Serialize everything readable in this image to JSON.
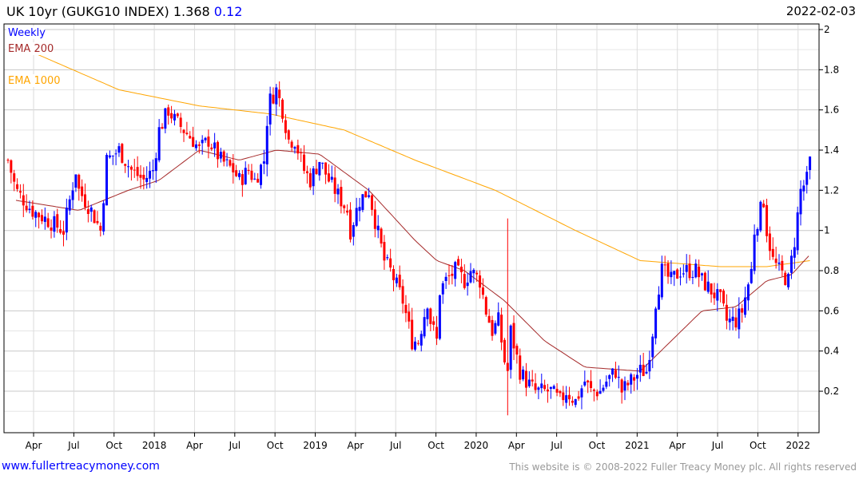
{
  "header": {
    "title": "UK 10yr (GUKG10 INDEX) 1.368",
    "change": "0.12",
    "date": "2022-02-03"
  },
  "footer": {
    "link": "www.fullertreacymoney.com",
    "copyright": "This website is © 2008-2022 Fuller Treacy Money plc. All rights reserved"
  },
  "chart_data": {
    "type": "candlestick",
    "title": "UK 10yr (GUKG10 INDEX)",
    "interval": "Weekly",
    "last_close": 1.368,
    "ylim": [
      0,
      2
    ],
    "y_ticks": [
      0.2,
      0.4,
      0.6,
      0.8,
      1,
      1.2,
      1.4,
      1.6,
      1.8,
      2
    ],
    "x_ticks": [
      "Apr",
      "Jul",
      "Oct",
      "2018",
      "Apr",
      "Jul",
      "Oct",
      "2019",
      "Apr",
      "Jul",
      "Oct",
      "2020",
      "Apr",
      "Jul",
      "Oct",
      "2021",
      "Apr",
      "Jul",
      "Oct",
      "2022"
    ],
    "x_unit": "weeks since first week of Jan 2017",
    "x_tick_first_week": 8.3,
    "weeks_per_tick": 13.045,
    "total_weeks": 262,
    "colors": {
      "up": "#0000ff",
      "down": "#ff0000",
      "ema200": "#a52a2a",
      "ema1000": "#ffa500",
      "grid": "#dcdcdc"
    },
    "legend": [
      {
        "label": "Weekly",
        "color": "#0000ff"
      },
      {
        "label": "EMA 200",
        "color": "#a52a2a"
      },
      {
        "label": "EMA 1000",
        "color": "#ffa500"
      }
    ],
    "close_trace": [
      [
        0,
        1.35
      ],
      [
        2.6,
        1.2
      ],
      [
        7.8,
        1.1
      ],
      [
        13,
        1.05
      ],
      [
        18,
        1.0
      ],
      [
        22,
        1.3
      ],
      [
        23,
        1.2
      ],
      [
        27,
        1.1
      ],
      [
        30,
        1.0
      ],
      [
        32,
        1.35
      ],
      [
        36,
        1.4
      ],
      [
        40,
        1.3
      ],
      [
        44,
        1.25
      ],
      [
        47,
        1.3
      ],
      [
        49,
        1.5
      ],
      [
        52,
        1.6
      ],
      [
        54,
        1.55
      ],
      [
        60,
        1.45
      ],
      [
        62,
        1.4
      ],
      [
        65,
        1.45
      ],
      [
        69,
        1.35
      ],
      [
        73,
        1.3
      ],
      [
        75,
        1.25
      ],
      [
        78,
        1.3
      ],
      [
        80,
        1.25
      ],
      [
        83,
        1.35
      ],
      [
        84,
        1.55
      ],
      [
        85,
        1.65
      ],
      [
        87,
        1.7
      ],
      [
        89,
        1.6
      ],
      [
        91,
        1.45
      ],
      [
        93,
        1.45
      ],
      [
        96,
        1.3
      ],
      [
        98,
        1.25
      ],
      [
        101,
        1.35
      ],
      [
        104,
        1.25
      ],
      [
        106,
        1.2
      ],
      [
        110,
        1.1
      ],
      [
        111,
        1.0
      ],
      [
        114,
        1.15
      ],
      [
        117,
        1.2
      ],
      [
        119,
        1.05
      ],
      [
        122,
        0.85
      ],
      [
        124,
        0.8
      ],
      [
        128,
        0.65
      ],
      [
        131,
        0.45
      ],
      [
        133,
        0.45
      ],
      [
        136,
        0.65
      ],
      [
        137,
        0.55
      ],
      [
        139,
        0.45
      ],
      [
        140,
        0.7
      ],
      [
        142,
        0.75
      ],
      [
        145,
        0.8
      ],
      [
        148,
        0.75
      ],
      [
        150,
        0.8
      ],
      [
        153,
        0.75
      ],
      [
        155,
        0.6
      ],
      [
        157,
        0.5
      ],
      [
        159,
        0.55
      ],
      [
        161,
        0.35
      ],
      [
        162,
        0.3
      ],
      [
        163,
        0.5
      ],
      [
        166,
        0.3
      ],
      [
        168,
        0.25
      ],
      [
        171,
        0.2
      ],
      [
        174,
        0.2
      ],
      [
        176,
        0.2
      ],
      [
        179,
        0.15
      ],
      [
        181,
        0.2
      ],
      [
        184,
        0.15
      ],
      [
        187,
        0.25
      ],
      [
        189,
        0.2
      ],
      [
        192,
        0.2
      ],
      [
        194,
        0.25
      ],
      [
        197,
        0.3
      ],
      [
        199,
        0.2
      ],
      [
        202,
        0.25
      ],
      [
        205,
        0.3
      ],
      [
        207,
        0.3
      ],
      [
        209,
        0.5
      ],
      [
        210,
        0.65
      ],
      [
        212,
        0.8
      ],
      [
        215,
        0.75
      ],
      [
        218,
        0.8
      ],
      [
        220,
        0.8
      ],
      [
        223,
        0.8
      ],
      [
        225,
        0.75
      ],
      [
        228,
        0.7
      ],
      [
        231,
        0.65
      ],
      [
        233,
        0.55
      ],
      [
        236,
        0.55
      ],
      [
        238,
        0.6
      ],
      [
        241,
        0.8
      ],
      [
        242,
        1.0
      ],
      [
        245,
        1.15
      ],
      [
        246,
        1.0
      ],
      [
        248,
        0.85
      ],
      [
        250,
        0.8
      ],
      [
        253,
        0.75
      ],
      [
        255,
        0.95
      ],
      [
        257,
        1.2
      ],
      [
        259,
        1.25
      ],
      [
        260,
        1.368
      ]
    ],
    "outliers": [
      {
        "week": 162,
        "high": 1.06,
        "low": 0.08
      }
    ],
    "ema200_trace": [
      [
        2.6,
        1.15
      ],
      [
        23,
        1.1
      ],
      [
        39,
        1.2
      ],
      [
        49,
        1.25
      ],
      [
        62,
        1.4
      ],
      [
        75,
        1.35
      ],
      [
        87,
        1.4
      ],
      [
        101,
        1.38
      ],
      [
        117,
        1.2
      ],
      [
        132,
        0.95
      ],
      [
        139,
        0.85
      ],
      [
        148,
        0.8
      ],
      [
        161,
        0.65
      ],
      [
        174,
        0.45
      ],
      [
        187,
        0.32
      ],
      [
        205,
        0.3
      ],
      [
        215,
        0.45
      ],
      [
        225,
        0.6
      ],
      [
        236,
        0.62
      ],
      [
        246,
        0.75
      ],
      [
        254,
        0.78
      ],
      [
        260,
        0.88
      ]
    ],
    "ema1000_trace": [
      [
        9,
        1.88
      ],
      [
        36,
        1.7
      ],
      [
        62,
        1.62
      ],
      [
        85,
        1.58
      ],
      [
        109,
        1.5
      ],
      [
        132,
        1.35
      ],
      [
        158,
        1.2
      ],
      [
        184,
        1.0
      ],
      [
        205,
        0.85
      ],
      [
        231,
        0.82
      ],
      [
        246,
        0.82
      ],
      [
        260,
        0.85
      ]
    ]
  }
}
